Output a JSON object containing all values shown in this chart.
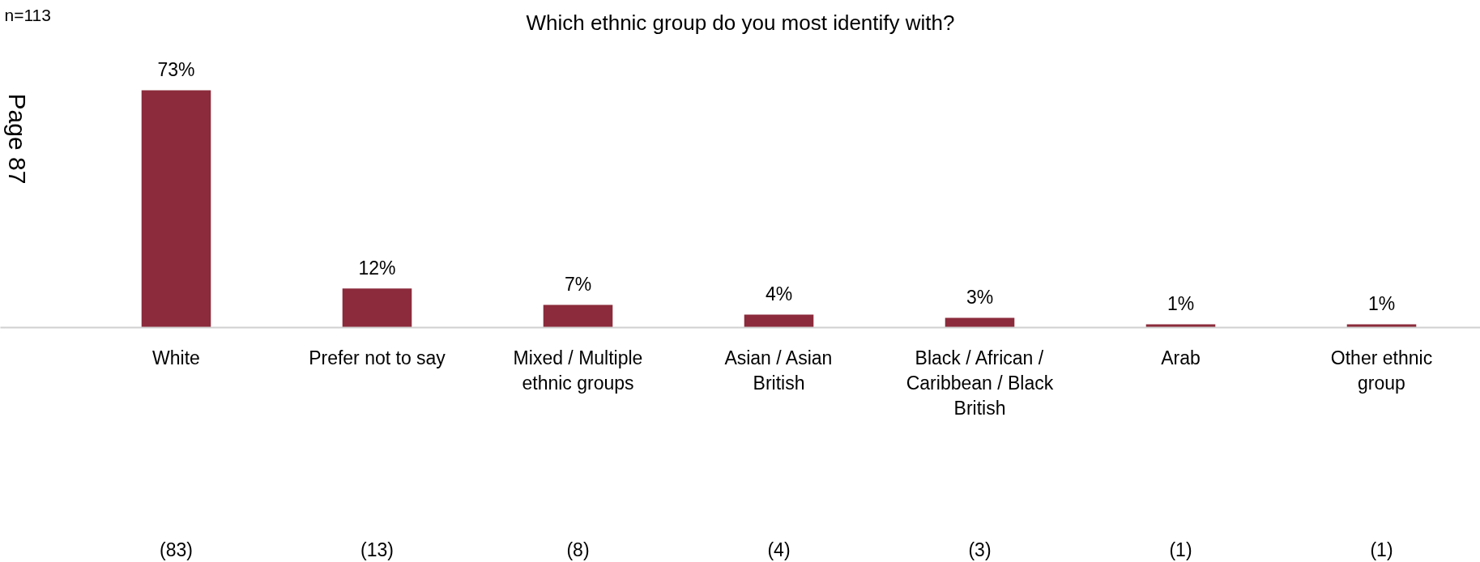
{
  "chart_data": {
    "type": "bar",
    "title": "Which ethnic group do you most identify with?",
    "categories": [
      "White",
      "Prefer not to say",
      "Mixed / Multiple ethnic groups",
      "Asian / Asian British",
      "Black / African / Caribbean / Black British",
      "Arab",
      "Other ethnic group"
    ],
    "values": [
      73,
      12,
      7,
      4,
      3,
      1,
      1
    ],
    "value_labels": [
      "73%",
      "12%",
      "7%",
      "4%",
      "3%",
      "1%",
      "1%"
    ],
    "color": "#8b2b3b",
    "grid": false,
    "annotations": [
      "n=113",
      "Page 87",
      "(83)",
      "(13)",
      "(8)",
      "(4)",
      "(3)",
      "(1)",
      "(1)"
    ]
  }
}
